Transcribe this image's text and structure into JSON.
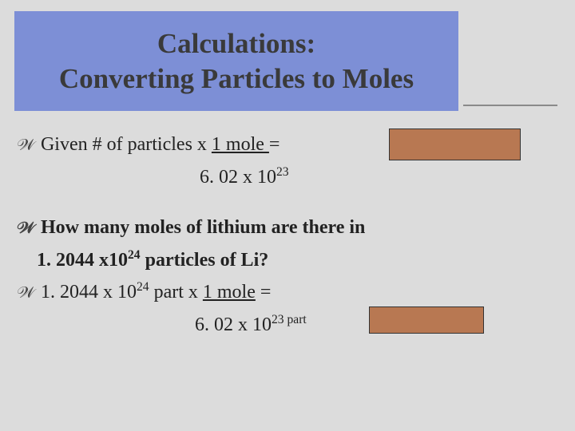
{
  "title": {
    "line1": "Calculations:",
    "line2": "Converting Particles to Moles"
  },
  "formula": {
    "prefix": "Given # of particles x  ",
    "numerator": "1 mole ",
    "equals": "=",
    "denominator_base": "6. 02 x 10",
    "denominator_exp": "23"
  },
  "question": {
    "line1_a": "How many moles of lithium are there in",
    "line2_a": "1. 2044 x10",
    "line2_exp": "24",
    "line2_b": "   particles of Li?"
  },
  "calc": {
    "part_a": "1. 2044 x 10",
    "part_a_exp": "24",
    "part_b": " part x ",
    "part_num": "1 mole",
    "part_eq": "        =",
    "denom_a": "6. 02 x 10",
    "denom_exp": "23 part"
  },
  "colors": {
    "title_bg": "#7d8fd6",
    "slide_bg": "#dcdcdc",
    "cover_bg": "#b87852",
    "text": "#222222"
  }
}
